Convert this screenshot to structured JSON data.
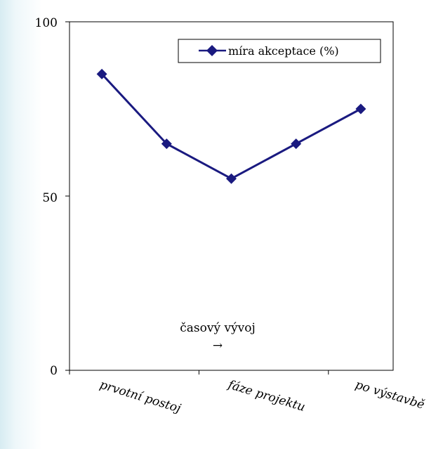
{
  "chart_data": {
    "type": "line",
    "x": [
      1,
      2,
      3,
      4,
      5
    ],
    "series": [
      {
        "name": "míra akceptace (%)",
        "values": [
          85,
          65,
          55,
          65,
          75
        ]
      }
    ],
    "ylim": [
      0,
      100
    ],
    "y_ticks": [
      "0",
      "50",
      "100"
    ],
    "x_tick_labels": [
      "prvotní postoj",
      "fáze projektu",
      "po výstavbě"
    ],
    "annotation": [
      "časový vývoj",
      "→"
    ],
    "legend_position": "top-right",
    "grid": false,
    "colors": {
      "series": "#1a1a80",
      "axis": "#000000"
    },
    "marker": "diamond"
  }
}
